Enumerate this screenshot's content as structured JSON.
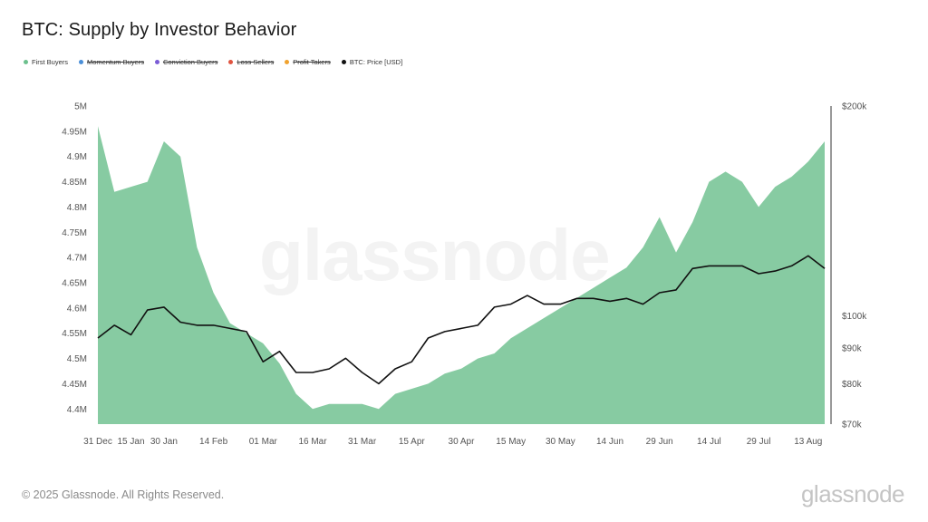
{
  "title": "BTC: Supply by Investor Behavior",
  "legend": [
    {
      "label": "First Buyers",
      "color": "#6cc08d",
      "struck": false
    },
    {
      "label": "Momentum Buyers",
      "color": "#4a8fd8",
      "struck": true
    },
    {
      "label": "Conviction Buyers",
      "color": "#7a5cd6",
      "struck": true
    },
    {
      "label": "Loss Sellers",
      "color": "#e0533f",
      "struck": true
    },
    {
      "label": "Profit Takers",
      "color": "#f0a22e",
      "struck": true
    },
    {
      "label": "BTC: Price [USD]",
      "color": "#111111",
      "struck": false
    }
  ],
  "watermark": "glassnode",
  "footer": {
    "copyright": "© 2025 Glassnode. All Rights Reserved.",
    "logo": "glassnode"
  },
  "chart_data": {
    "type": "area",
    "x": [
      "31 Dec",
      "10 Jan",
      "15 Jan",
      "25 Jan",
      "30 Jan",
      "05 Feb",
      "10 Feb",
      "14 Feb",
      "20 Feb",
      "25 Feb",
      "01 Mar",
      "05 Mar",
      "10 Mar",
      "16 Mar",
      "20 Mar",
      "26 Mar",
      "31 Mar",
      "05 Apr",
      "10 Apr",
      "15 Apr",
      "20 Apr",
      "25 Apr",
      "30 Apr",
      "05 May",
      "10 May",
      "15 May",
      "20 May",
      "25 May",
      "30 May",
      "05 Jun",
      "10 Jun",
      "14 Jun",
      "20 Jun",
      "25 Jun",
      "29 Jun",
      "05 Jul",
      "10 Jul",
      "14 Jul",
      "20 Jul",
      "25 Jul",
      "29 Jul",
      "05 Aug",
      "10 Aug",
      "13 Aug",
      "17 Aug"
    ],
    "x_tick_labels": [
      "31 Dec",
      "15 Jan",
      "30 Jan",
      "14 Feb",
      "01 Mar",
      "16 Mar",
      "31 Mar",
      "15 Apr",
      "30 Apr",
      "15 May",
      "30 May",
      "14 Jun",
      "29 Jun",
      "14 Jul",
      "29 Jul",
      "13 Aug"
    ],
    "series": [
      {
        "name": "First Buyers",
        "axis": "left",
        "color": "#6cc08d",
        "values": [
          4.96,
          4.83,
          4.84,
          4.85,
          4.93,
          4.9,
          4.72,
          4.63,
          4.57,
          4.55,
          4.53,
          4.49,
          4.43,
          4.4,
          4.41,
          4.41,
          4.41,
          4.4,
          4.43,
          4.44,
          4.45,
          4.47,
          4.48,
          4.5,
          4.51,
          4.54,
          4.56,
          4.58,
          4.6,
          4.62,
          4.64,
          4.66,
          4.68,
          4.72,
          4.78,
          4.71,
          4.77,
          4.85,
          4.87,
          4.85,
          4.8,
          4.84,
          4.86,
          4.89,
          4.93
        ]
      },
      {
        "name": "BTC: Price [USD]",
        "axis": "right",
        "color": "#111111",
        "values": [
          93000,
          97000,
          94000,
          102000,
          103000,
          98000,
          97000,
          97000,
          96000,
          95000,
          86000,
          89000,
          83000,
          83000,
          84000,
          87000,
          83000,
          80000,
          84000,
          86000,
          93000,
          95000,
          96000,
          97000,
          103000,
          104000,
          107000,
          104000,
          104000,
          106000,
          106000,
          105000,
          106000,
          104000,
          108000,
          109000,
          117000,
          118000,
          118000,
          118000,
          115000,
          116000,
          118000,
          122000,
          117000
        ]
      }
    ],
    "y_left": {
      "ticks": [
        "4.4M",
        "4.45M",
        "4.5M",
        "4.55M",
        "4.6M",
        "4.65M",
        "4.7M",
        "4.75M",
        "4.8M",
        "4.85M",
        "4.9M",
        "4.95M",
        "5M"
      ],
      "range": [
        4.37,
        5.0
      ],
      "unit": "M"
    },
    "y_right": {
      "ticks": [
        "$70k",
        "$80k",
        "$90k",
        "$100k",
        "$200k"
      ],
      "tick_values": [
        70000,
        80000,
        90000,
        100000,
        200000
      ],
      "scale": "log",
      "range": [
        70000,
        200000
      ]
    },
    "grid": false,
    "legend_position": "top-left"
  }
}
